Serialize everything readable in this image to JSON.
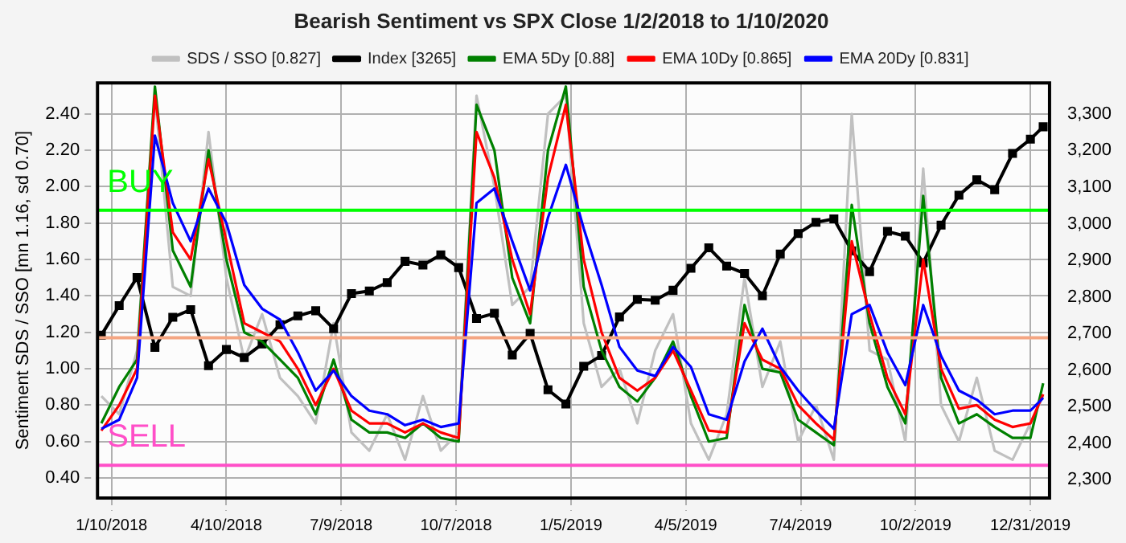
{
  "chart_data": {
    "type": "line",
    "title": "Bearish Sentiment vs SPX Close 1/2/2018 to 1/10/2020",
    "ylabel": "Sentiment SDS / SSO [mn 1.16, sd 0.70]",
    "x": [
      "2018-01-02",
      "2018-01-16",
      "2018-01-30",
      "2018-02-13",
      "2018-02-27",
      "2018-03-13",
      "2018-03-27",
      "2018-04-10",
      "2018-04-24",
      "2018-05-08",
      "2018-05-22",
      "2018-06-05",
      "2018-06-19",
      "2018-07-03",
      "2018-07-17",
      "2018-07-31",
      "2018-08-14",
      "2018-08-28",
      "2018-09-11",
      "2018-09-25",
      "2018-10-09",
      "2018-10-23",
      "2018-11-06",
      "2018-11-20",
      "2018-12-04",
      "2018-12-18",
      "2019-01-01",
      "2019-01-15",
      "2019-01-29",
      "2019-02-12",
      "2019-02-26",
      "2019-03-12",
      "2019-03-26",
      "2019-04-09",
      "2019-04-23",
      "2019-05-07",
      "2019-05-21",
      "2019-06-04",
      "2019-06-18",
      "2019-07-02",
      "2019-07-16",
      "2019-07-30",
      "2019-08-13",
      "2019-08-27",
      "2019-09-10",
      "2019-09-24",
      "2019-10-08",
      "2019-10-22",
      "2019-11-05",
      "2019-11-19",
      "2019-12-03",
      "2019-12-17",
      "2019-12-31",
      "2020-01-10"
    ],
    "xlim": [
      "2017-12-30",
      "2020-01-15"
    ],
    "xticks": [
      {
        "value": "2018-01-10",
        "label": "1/10/2018"
      },
      {
        "value": "2018-04-10",
        "label": "4/10/2018"
      },
      {
        "value": "2018-07-09",
        "label": "7/9/2018"
      },
      {
        "value": "2018-10-07",
        "label": "10/7/2018"
      },
      {
        "value": "2019-01-05",
        "label": "1/5/2019"
      },
      {
        "value": "2019-04-05",
        "label": "4/5/2019"
      },
      {
        "value": "2019-07-04",
        "label": "7/4/2019"
      },
      {
        "value": "2019-10-02",
        "label": "10/2/2019"
      },
      {
        "value": "2019-12-31",
        "label": "12/31/2019"
      }
    ],
    "ylim": [
      0.29,
      2.57
    ],
    "yticks": [
      {
        "value": 0.4,
        "label": "0.40"
      },
      {
        "value": 0.6,
        "label": "0.60"
      },
      {
        "value": 0.8,
        "label": "0.80"
      },
      {
        "value": 1.0,
        "label": "1.00"
      },
      {
        "value": 1.2,
        "label": "1.20"
      },
      {
        "value": 1.4,
        "label": "1.40"
      },
      {
        "value": 1.6,
        "label": "1.60"
      },
      {
        "value": 1.8,
        "label": "1.80"
      },
      {
        "value": 2.0,
        "label": "2.00"
      },
      {
        "value": 2.2,
        "label": "2.20"
      },
      {
        "value": 2.4,
        "label": "2.40"
      }
    ],
    "y2lim": [
      2250,
      3385
    ],
    "y2ticks": [
      {
        "value": 2300,
        "label": "2,300"
      },
      {
        "value": 2400,
        "label": "2,400"
      },
      {
        "value": 2500,
        "label": "2,500"
      },
      {
        "value": 2600,
        "label": "2,600"
      },
      {
        "value": 2700,
        "label": "2,700"
      },
      {
        "value": 2800,
        "label": "2,800"
      },
      {
        "value": 2900,
        "label": "2,900"
      },
      {
        "value": 3000,
        "label": "3,000"
      },
      {
        "value": 3100,
        "label": "3,100"
      },
      {
        "value": 3200,
        "label": "3,200"
      },
      {
        "value": 3300,
        "label": "3,300"
      }
    ],
    "grid": true,
    "legend": "top",
    "line_style": "solid",
    "ref_lines": [
      {
        "axis": "y",
        "value": 1.87,
        "label": "BUY",
        "color": "#00ff00"
      },
      {
        "axis": "y",
        "value": 1.17,
        "color": "#f4a582"
      },
      {
        "axis": "y",
        "value": 0.47,
        "label": "SELL",
        "color": "#ff4fc8"
      }
    ],
    "series": [
      {
        "name": "SDS / SSO [0.827]",
        "color": "#c0c0c0",
        "marker": "none",
        "values": [
          0.85,
          0.75,
          1.1,
          2.5,
          1.45,
          1.4,
          2.3,
          1.5,
          1.05,
          1.3,
          0.95,
          0.85,
          0.7,
          1.25,
          0.65,
          0.55,
          0.75,
          0.5,
          0.85,
          0.55,
          0.65,
          2.5,
          2.0,
          1.35,
          1.45,
          2.4,
          2.5,
          1.25,
          0.9,
          1.0,
          0.7,
          1.1,
          1.3,
          0.7,
          0.5,
          0.75,
          1.5,
          0.9,
          1.15,
          0.6,
          0.8,
          0.5,
          2.4,
          1.1,
          1.05,
          0.6,
          2.1,
          0.8,
          0.6,
          0.95,
          0.55,
          0.5,
          0.7,
          0.85
        ]
      },
      {
        "name": "Index [3265]",
        "color": "#000000",
        "marker": "square",
        "axis": "y2",
        "values": [
          2695,
          2776,
          2853,
          2662,
          2744,
          2765,
          2612,
          2656,
          2634,
          2671,
          2724,
          2748,
          2762,
          2713,
          2809,
          2816,
          2839,
          2897,
          2887,
          2915,
          2880,
          2741,
          2755,
          2641,
          2700,
          2546,
          2507,
          2610,
          2640,
          2745,
          2793,
          2791,
          2818,
          2878,
          2934,
          2884,
          2864,
          2803,
          2917,
          2973,
          3004,
          3013,
          2926,
          2869,
          2979,
          2966,
          2893,
          2996,
          3078,
          3120,
          3093,
          3192,
          3231,
          3265
        ]
      },
      {
        "name": "EMA 5Dy [0.88]",
        "color": "#008000",
        "marker": "none",
        "values": [
          0.7,
          0.9,
          1.05,
          2.55,
          1.65,
          1.45,
          2.2,
          1.6,
          1.2,
          1.15,
          1.05,
          0.95,
          0.75,
          1.05,
          0.72,
          0.65,
          0.65,
          0.62,
          0.7,
          0.62,
          0.6,
          2.45,
          2.2,
          1.5,
          1.25,
          2.2,
          2.55,
          1.45,
          1.1,
          0.9,
          0.82,
          0.95,
          1.15,
          0.85,
          0.6,
          0.62,
          1.35,
          1.0,
          0.98,
          0.72,
          0.65,
          0.58,
          1.9,
          1.25,
          0.9,
          0.7,
          1.95,
          0.95,
          0.7,
          0.75,
          0.68,
          0.62,
          0.62,
          0.92
        ]
      },
      {
        "name": "EMA 10Dy [0.865]",
        "color": "#ff0000",
        "marker": "none",
        "values": [
          0.66,
          0.8,
          1.0,
          2.5,
          1.75,
          1.6,
          2.15,
          1.7,
          1.25,
          1.2,
          1.15,
          1.0,
          0.8,
          1.0,
          0.77,
          0.7,
          0.7,
          0.65,
          0.7,
          0.65,
          0.62,
          2.3,
          2.05,
          1.6,
          1.3,
          2.05,
          2.45,
          1.6,
          1.2,
          0.95,
          0.88,
          0.95,
          1.1,
          0.88,
          0.66,
          0.65,
          1.25,
          1.05,
          1.0,
          0.8,
          0.7,
          0.61,
          1.7,
          1.3,
          0.95,
          0.75,
          1.6,
          1.0,
          0.78,
          0.8,
          0.72,
          0.68,
          0.7,
          0.86
        ]
      },
      {
        "name": "EMA 20Dy [0.831]",
        "color": "#0000ff",
        "marker": "none",
        "values": [
          0.67,
          0.72,
          0.95,
          2.28,
          1.91,
          1.7,
          1.99,
          1.8,
          1.46,
          1.33,
          1.27,
          1.09,
          0.88,
          0.99,
          0.85,
          0.77,
          0.75,
          0.69,
          0.72,
          0.68,
          0.7,
          1.91,
          1.99,
          1.7,
          1.43,
          1.83,
          2.12,
          1.77,
          1.46,
          1.12,
          0.99,
          0.96,
          1.12,
          1.01,
          0.75,
          0.72,
          1.04,
          1.22,
          1.01,
          0.88,
          0.77,
          0.67,
          1.3,
          1.35,
          1.09,
          0.91,
          1.35,
          1.07,
          0.88,
          0.83,
          0.75,
          0.77,
          0.77,
          0.84
        ]
      }
    ]
  }
}
